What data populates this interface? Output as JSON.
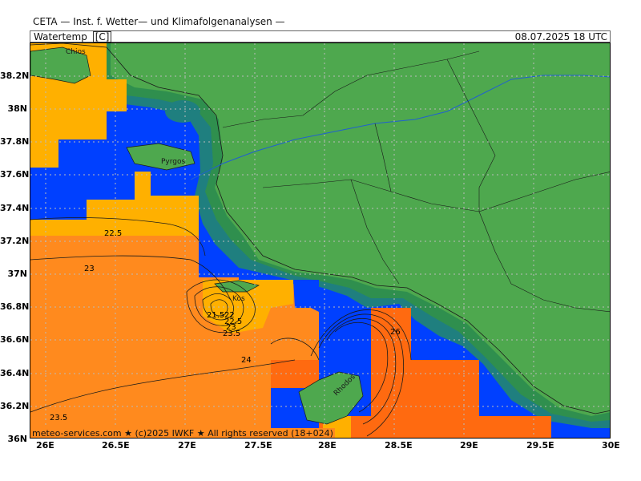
{
  "header": {
    "title": "CETA — Inst. f. Wetter— und Klimafolgenanalysen —"
  },
  "parameter": {
    "name": "Watertemp",
    "unit": "[C]"
  },
  "valid_time": "08.07.2025  18 UTC",
  "footer": {
    "copyright": "meteo-services.com ★ (c)2025 IWKF ★ All rights reserved (18+024)"
  },
  "axes": {
    "lat_labels": [
      "38.2N",
      "38N",
      "37.8N",
      "37.6N",
      "37.4N",
      "37.2N",
      "37N",
      "36.8N",
      "36.6N",
      "36.4N",
      "36.2N",
      "36N"
    ],
    "lon_labels": [
      "26E",
      "26.5E",
      "27E",
      "27.5E",
      "28E",
      "28.5E",
      "29E",
      "29.5E",
      "30E"
    ]
  },
  "places": [
    {
      "name": "Chios"
    },
    {
      "name": "Pyrgos"
    },
    {
      "name": "Kos"
    },
    {
      "name": "Rhodos"
    }
  ],
  "contour_labels": [
    "22.5",
    "23",
    "21.5",
    "22",
    "22.5",
    "23",
    "23.5",
    "24",
    "26",
    "23.5"
  ],
  "colors": {
    "land": "#4ea84e",
    "coast_band_dark": "#2f8f4e",
    "coast_band_teal": "#1f7f7f",
    "cool_water": "#0040ff",
    "water_yellow": "#ffb000",
    "water_orange": "#ff8a1e",
    "water_dark_orange": "#ff6a10",
    "grid": "#bbbbbb"
  }
}
